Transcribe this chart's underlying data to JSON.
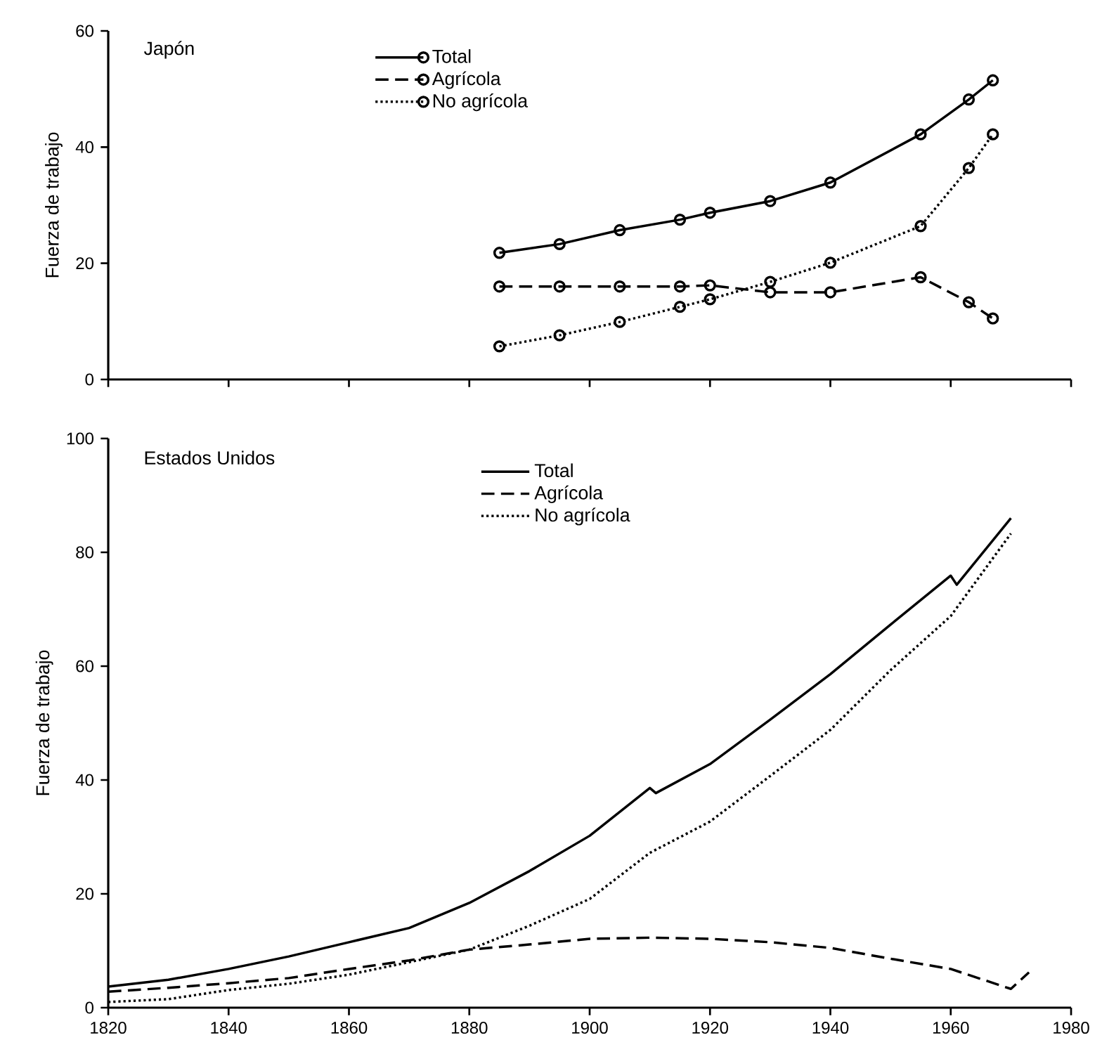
{
  "chart_data": [
    {
      "type": "line",
      "title": "Japón",
      "ylabel": "Fuerza de trabajo",
      "xlim": [
        1820,
        1980
      ],
      "xticks": [
        1820,
        1840,
        1860,
        1880,
        1900,
        1920,
        1940,
        1960,
        1980
      ],
      "ylim": [
        0,
        60
      ],
      "yticks": [
        0,
        20,
        40,
        60
      ],
      "tick_labels": "y",
      "legend": "top",
      "marker": "circle",
      "grid": false,
      "x": [
        1885,
        1895,
        1905,
        1915,
        1920,
        1930,
        1940,
        1955,
        1963,
        1967
      ],
      "series": [
        {
          "name": "Total",
          "color": "#000000",
          "line_style": "solid",
          "values": [
            21.8,
            23.3,
            25.7,
            27.5,
            28.7,
            30.7,
            33.9,
            42.2,
            48.2,
            51.5
          ]
        },
        {
          "name": "Agrícola",
          "color": "#000000",
          "line_style": "dashed",
          "values": [
            16,
            16,
            16,
            16,
            16.2,
            15,
            15,
            17.6,
            13.3,
            10.5
          ]
        },
        {
          "name": "No agrícola",
          "color": "#000000",
          "line_style": "dotted",
          "values": [
            5.7,
            7.6,
            9.9,
            12.5,
            13.8,
            16.8,
            20.1,
            26.4,
            36.4,
            42.2
          ]
        }
      ]
    },
    {
      "type": "line",
      "title": "Estados Unidos",
      "ylabel": "Fuerza de trabajo",
      "xlim": [
        1820,
        1980
      ],
      "xticks": [
        1820,
        1840,
        1860,
        1880,
        1900,
        1920,
        1940,
        1960,
        1980
      ],
      "ylim": [
        0,
        100
      ],
      "yticks": [
        0,
        20,
        40,
        60,
        80,
        100
      ],
      "legend": "top",
      "marker": "none",
      "grid": false,
      "series": [
        {
          "name": "Total",
          "color": "#000000",
          "line_style": "solid",
          "x": [
            1820,
            1830,
            1840,
            1850,
            1860,
            1870,
            1880,
            1890,
            1900,
            1910,
            1911,
            1920,
            1930,
            1940,
            1950,
            1960,
            1961,
            1970
          ],
          "values": [
            3.7,
            4.9,
            6.8,
            9,
            11.5,
            14,
            18.4,
            24,
            30.2,
            38.6,
            37.7,
            42.8,
            50.6,
            58.6,
            67.3,
            75.9,
            74.3,
            86
          ]
        },
        {
          "name": "Agrícola",
          "color": "#000000",
          "line_style": "dashed",
          "x": [
            1820,
            1830,
            1840,
            1850,
            1860,
            1870,
            1880,
            1890,
            1900,
            1910,
            1920,
            1930,
            1940,
            1950,
            1960,
            1970,
            1973
          ],
          "values": [
            2.8,
            3.5,
            4.3,
            5.2,
            6.8,
            8.3,
            10.2,
            11.1,
            12.1,
            12.3,
            12.1,
            11.5,
            10.5,
            8.6,
            6.8,
            3.3,
            6.2
          ]
        },
        {
          "name": "No agrícola",
          "color": "#000000",
          "line_style": "dotted",
          "x": [
            1820,
            1830,
            1840,
            1850,
            1860,
            1870,
            1880,
            1890,
            1900,
            1910,
            1920,
            1930,
            1940,
            1950,
            1960,
            1970
          ],
          "values": [
            1,
            1.5,
            3.1,
            4.2,
            5.8,
            8,
            10.2,
            14.4,
            19.1,
            27.2,
            32.7,
            40.7,
            48.8,
            59.3,
            68.8,
            83.3
          ]
        }
      ]
    }
  ]
}
